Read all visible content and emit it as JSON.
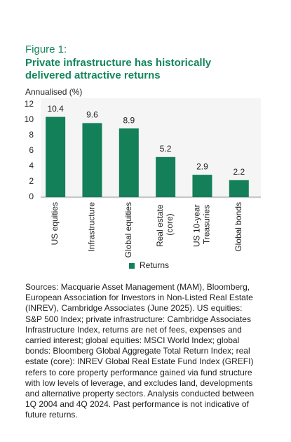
{
  "chart_data": {
    "type": "bar",
    "figure_label": "Figure 1:",
    "title": "Private infrastructure has historically delivered attractive returns",
    "y_label": "Annualised (%)",
    "categories": [
      "US equities",
      "Infrastructure",
      "Global equities",
      "Real estate (core)",
      "US 10-year Treasuries",
      "Global bonds"
    ],
    "series": [
      {
        "name": "Returns",
        "color": "#13805a",
        "values": [
          10.4,
          9.6,
          8.9,
          5.2,
          2.9,
          2.2
        ]
      }
    ],
    "ylim": [
      0,
      12
    ],
    "yticks": [
      0,
      2,
      4,
      6,
      8,
      10,
      12
    ],
    "grid": false,
    "legend": "bottom",
    "source": "Sources: Macquarie Asset Management (MAM), Bloomberg, European Association for Investors in Non-Listed Real Estate (INREV), Cambridge Associates (June 2025). US equities: S&P 500 Index; private infrastructure: Cambridge Associates Infrastructure Index, returns are net of fees, expenses and carried interest; global equities: MSCI World Index; global bonds: Bloomberg Global Aggregate Total Return Index; real estate (core): INREV Global Real Estate Fund Index (GREFI) refers to core property performance gained via fund structure with low levels of leverage, and excludes land, developments and alternative property sectors. Analysis conducted between 1Q 2004 and 4Q 2024. Past performance is not indicative of future returns."
  }
}
